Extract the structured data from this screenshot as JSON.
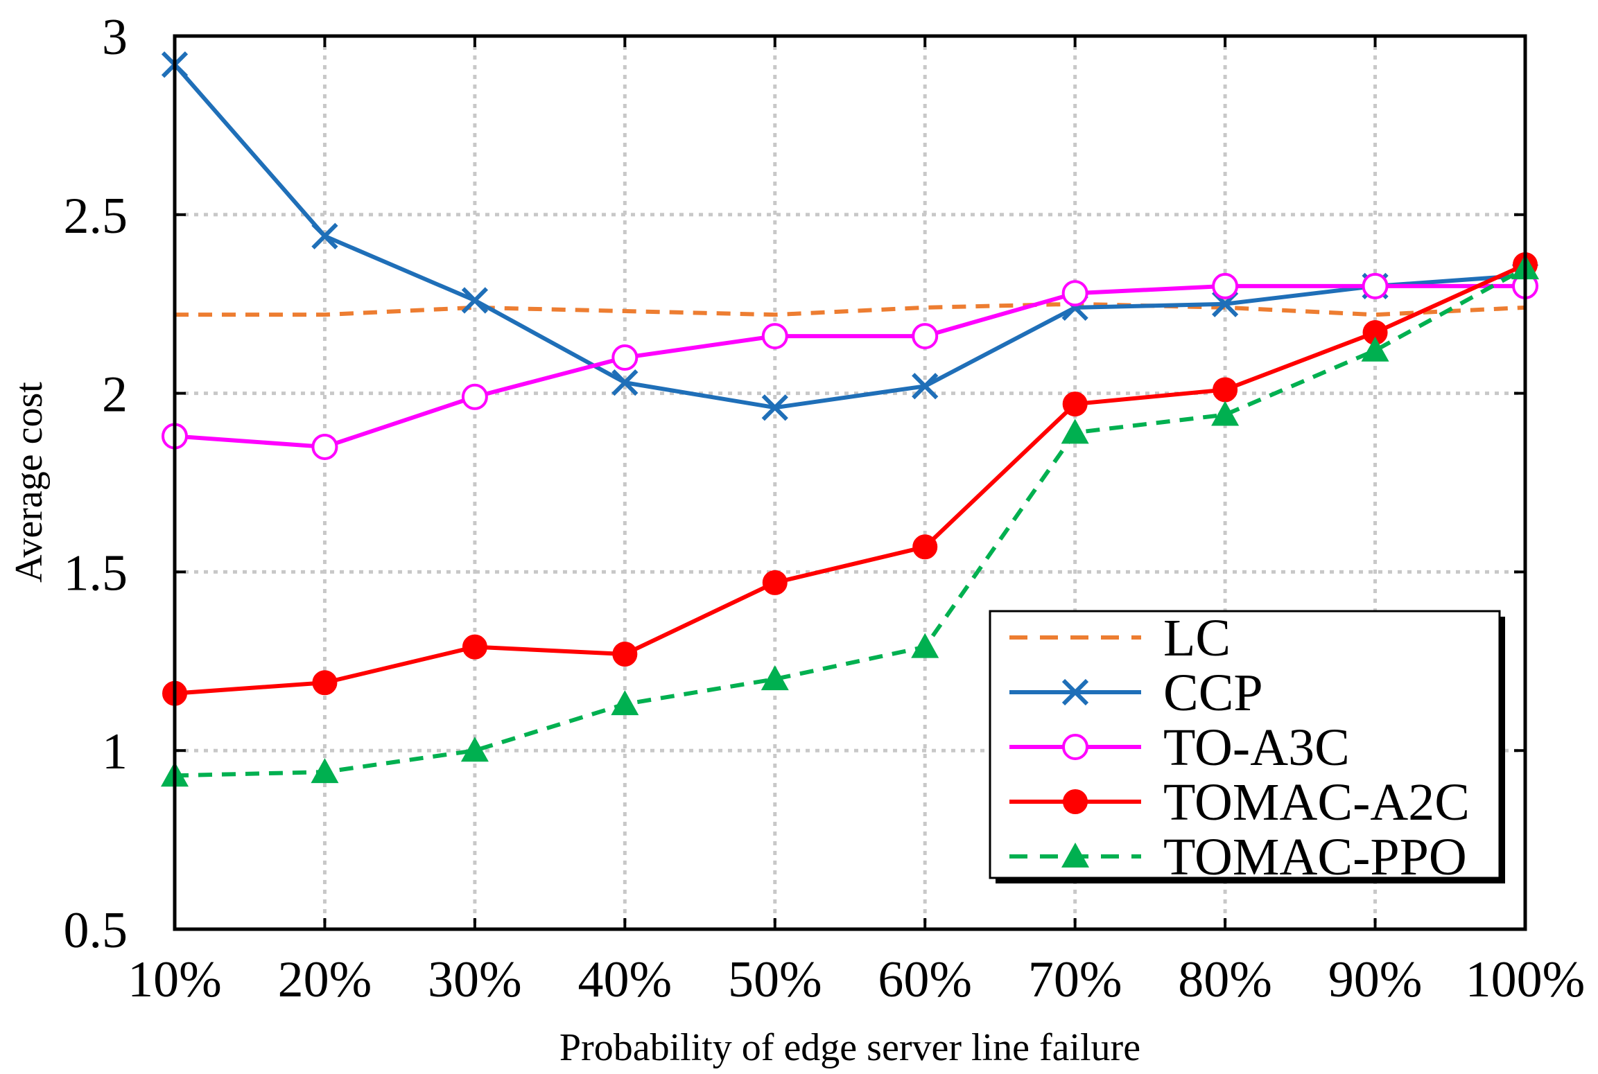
{
  "chart_data": {
    "type": "line",
    "title": "",
    "xlabel": "Probability of edge server line failure",
    "ylabel": "Average cost",
    "categories": [
      "10%",
      "20%",
      "30%",
      "40%",
      "50%",
      "60%",
      "70%",
      "80%",
      "90%",
      "100%"
    ],
    "ylim": [
      0.5,
      3
    ],
    "yticks": [
      0.5,
      1,
      1.5,
      2,
      2.5,
      3
    ],
    "ytick_labels": [
      "0.5",
      "1",
      "1.5",
      "2",
      "2.5",
      "3"
    ],
    "grid": true,
    "legend_position": "lower-right",
    "series": [
      {
        "name": "LC",
        "color": "#ED7D31",
        "style": "dashed",
        "marker": "none",
        "values": [
          2.22,
          2.22,
          2.24,
          2.23,
          2.22,
          2.24,
          2.25,
          2.24,
          2.22,
          2.24
        ]
      },
      {
        "name": "CCP",
        "color": "#1F6FB8",
        "style": "solid",
        "marker": "x",
        "values": [
          2.92,
          2.44,
          2.26,
          2.03,
          1.96,
          2.02,
          2.24,
          2.25,
          2.3,
          2.33
        ]
      },
      {
        "name": "TO-A3C",
        "color": "#FF00FF",
        "style": "solid",
        "marker": "open-circle",
        "values": [
          1.88,
          1.85,
          1.99,
          2.1,
          2.16,
          2.16,
          2.28,
          2.3,
          2.3,
          2.3
        ]
      },
      {
        "name": "TOMAC-A2C",
        "color": "#FF0000",
        "style": "solid",
        "marker": "filled-circle",
        "values": [
          1.16,
          1.19,
          1.29,
          1.27,
          1.47,
          1.57,
          1.97,
          2.01,
          2.17,
          2.36
        ]
      },
      {
        "name": "TOMAC-PPO",
        "color": "#00B050",
        "style": "dashed",
        "marker": "triangle",
        "values": [
          0.93,
          0.94,
          1.0,
          1.13,
          1.2,
          1.29,
          1.89,
          1.94,
          2.12,
          2.35
        ]
      }
    ]
  }
}
